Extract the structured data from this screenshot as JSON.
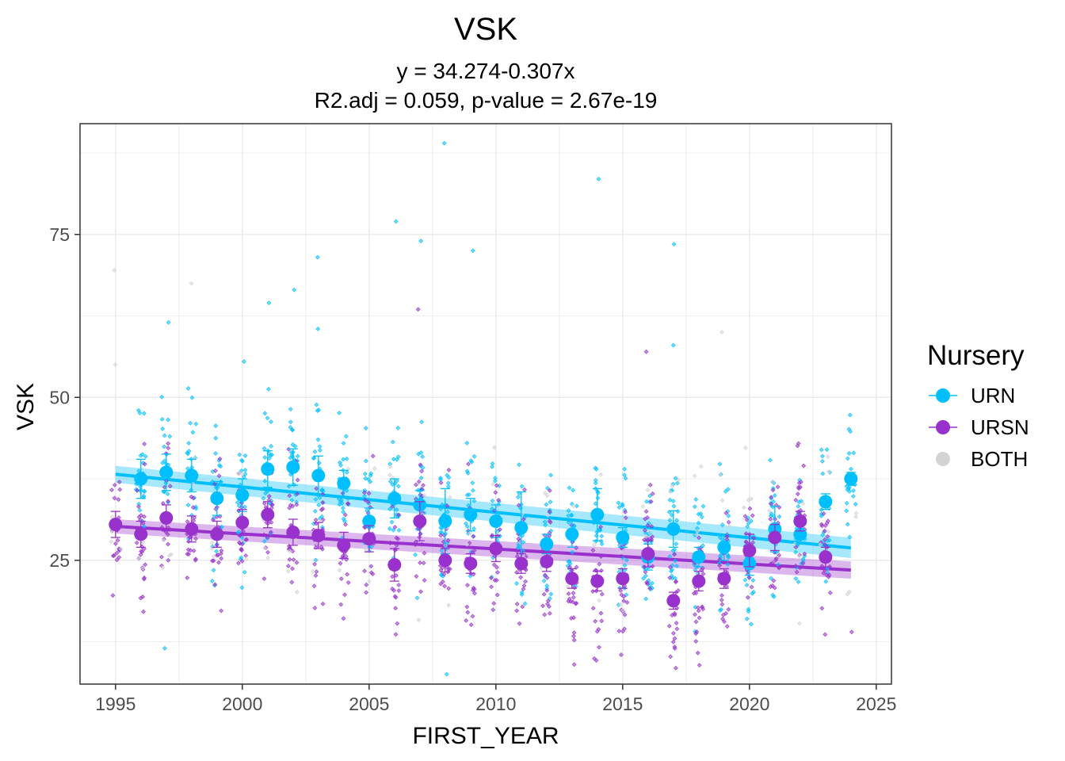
{
  "chart_data": {
    "type": "scatter",
    "title": "VSK",
    "subtitle_line1": "y = 34.274-0.307x",
    "subtitle_line2": "R2.adj = 0.059, p-value = 2.67e-19",
    "xlabel": "FIRST_YEAR",
    "ylabel": "VSK",
    "xlim": [
      1993.6,
      2025.6
    ],
    "ylim": [
      6.0,
      92.0
    ],
    "x_ticks": [
      1995,
      2000,
      2005,
      2010,
      2015,
      2020,
      2025
    ],
    "x_tick_labels": [
      "1995",
      "2000",
      "2005",
      "2010",
      "2015",
      "2020",
      "2025"
    ],
    "y_ticks": [
      25,
      50,
      75
    ],
    "y_tick_labels": [
      "25",
      "50",
      "75"
    ],
    "grid": true,
    "legend": {
      "title": "Nursery",
      "placement": "right",
      "items": [
        {
          "label": "URN",
          "color": "#00BFFF"
        },
        {
          "label": "URSN",
          "color": "#9932CC"
        },
        {
          "label": "BOTH",
          "color": "#D3D3D3"
        }
      ]
    },
    "series": [
      {
        "name": "URN",
        "color": "#00BFFF",
        "means": [
          {
            "x": 1996,
            "y": 37.5,
            "err": 3.0
          },
          {
            "x": 1997,
            "y": 38.5,
            "err": 2.8
          },
          {
            "x": 1998,
            "y": 38.0,
            "err": 2.5
          },
          {
            "x": 1999,
            "y": 34.5,
            "err": 2.6
          },
          {
            "x": 2000,
            "y": 35.0,
            "err": 2.5
          },
          {
            "x": 2001,
            "y": 39.0,
            "err": 2.8
          },
          {
            "x": 2002,
            "y": 39.3,
            "err": 2.8
          },
          {
            "x": 2003,
            "y": 38.0,
            "err": 3.0
          },
          {
            "x": 2004,
            "y": 36.8,
            "err": 2.0
          },
          {
            "x": 2005,
            "y": 31.0,
            "err": 2.0
          },
          {
            "x": 2006,
            "y": 34.5,
            "err": 3.0
          },
          {
            "x": 2007,
            "y": 33.5,
            "err": 2.2
          },
          {
            "x": 2008,
            "y": 31.0,
            "err": 5.0
          },
          {
            "x": 2009,
            "y": 32.0,
            "err": 2.5
          },
          {
            "x": 2010,
            "y": 31.0,
            "err": 2.5
          },
          {
            "x": 2011,
            "y": 30.0,
            "err": 5.5
          },
          {
            "x": 2012,
            "y": 27.5,
            "err": 1.5
          },
          {
            "x": 2013,
            "y": 29.0,
            "err": 2.0
          },
          {
            "x": 2014,
            "y": 32.0,
            "err": 4.0
          },
          {
            "x": 2015,
            "y": 28.5,
            "err": 1.5
          },
          {
            "x": 2016,
            "y": 25.5,
            "err": 2.0
          },
          {
            "x": 2017,
            "y": 29.8,
            "err": 2.8
          },
          {
            "x": 2018,
            "y": 25.5,
            "err": 1.5
          },
          {
            "x": 2019,
            "y": 27.0,
            "err": 2.0
          },
          {
            "x": 2020,
            "y": 24.5,
            "err": 1.8
          },
          {
            "x": 2021,
            "y": 29.8,
            "err": 3.5
          },
          {
            "x": 2022,
            "y": 29.0,
            "err": 1.5
          },
          {
            "x": 2023,
            "y": 34.0,
            "err": 1.2
          },
          {
            "x": 2024,
            "y": 37.5,
            "err": 1.0
          }
        ],
        "fit": {
          "x": [
            1995,
            2024
          ],
          "y": [
            38.2,
            26.9
          ],
          "ci_halfwidth": 1.3
        }
      },
      {
        "name": "URSN",
        "color": "#9932CC",
        "means": [
          {
            "x": 1995,
            "y": 30.5,
            "err": 2.0
          },
          {
            "x": 1996,
            "y": 29.0,
            "err": 2.0
          },
          {
            "x": 1997,
            "y": 31.5,
            "err": 2.0
          },
          {
            "x": 1998,
            "y": 29.8,
            "err": 2.0
          },
          {
            "x": 1999,
            "y": 29.0,
            "err": 2.0
          },
          {
            "x": 2000,
            "y": 30.8,
            "err": 2.0
          },
          {
            "x": 2001,
            "y": 32.0,
            "err": 2.0
          },
          {
            "x": 2002,
            "y": 29.3,
            "err": 2.0
          },
          {
            "x": 2003,
            "y": 28.8,
            "err": 2.0
          },
          {
            "x": 2004,
            "y": 27.3,
            "err": 2.0
          },
          {
            "x": 2005,
            "y": 28.3,
            "err": 2.0
          },
          {
            "x": 2006,
            "y": 24.3,
            "err": 2.5
          },
          {
            "x": 2007,
            "y": 31.0,
            "err": 3.0
          },
          {
            "x": 2008,
            "y": 25.0,
            "err": 1.8
          },
          {
            "x": 2009,
            "y": 24.5,
            "err": 1.5
          },
          {
            "x": 2010,
            "y": 26.8,
            "err": 2.0
          },
          {
            "x": 2011,
            "y": 24.5,
            "err": 1.5
          },
          {
            "x": 2012,
            "y": 24.8,
            "err": 1.5
          },
          {
            "x": 2013,
            "y": 22.2,
            "err": 1.5
          },
          {
            "x": 2014,
            "y": 21.8,
            "err": 1.5
          },
          {
            "x": 2015,
            "y": 22.2,
            "err": 1.5
          },
          {
            "x": 2016,
            "y": 26.0,
            "err": 2.0
          },
          {
            "x": 2017,
            "y": 18.8,
            "err": 1.3
          },
          {
            "x": 2018,
            "y": 21.8,
            "err": 1.5
          },
          {
            "x": 2019,
            "y": 22.2,
            "err": 1.5
          },
          {
            "x": 2020,
            "y": 26.5,
            "err": 2.5
          },
          {
            "x": 2021,
            "y": 28.5,
            "err": 2.0
          },
          {
            "x": 2022,
            "y": 31.0,
            "err": 1.5
          },
          {
            "x": 2023,
            "y": 25.5,
            "err": 1.5
          }
        ],
        "fit": {
          "x": [
            1995,
            2024
          ],
          "y": [
            30.2,
            23.5
          ],
          "ci_halfwidth": 1.1
        }
      },
      {
        "name": "BOTH",
        "color": "#D3D3D3",
        "means": []
      }
    ],
    "outlier_points": [
      {
        "x": 2008,
        "y": 89,
        "series": "URN"
      },
      {
        "x": 2014,
        "y": 83.5,
        "series": "URN"
      },
      {
        "x": 2006,
        "y": 77,
        "series": "URN"
      },
      {
        "x": 2007,
        "y": 74,
        "series": "URN"
      },
      {
        "x": 2017,
        "y": 73.5,
        "series": "URN"
      },
      {
        "x": 2009,
        "y": 72.5,
        "series": "URN"
      },
      {
        "x": 2003,
        "y": 71.5,
        "series": "URN"
      },
      {
        "x": 1995,
        "y": 69.5,
        "series": "BOTH"
      },
      {
        "x": 1998,
        "y": 67.5,
        "series": "BOTH"
      },
      {
        "x": 2002,
        "y": 66.5,
        "series": "URN"
      },
      {
        "x": 2001,
        "y": 64.5,
        "series": "URN"
      },
      {
        "x": 2007,
        "y": 63.5,
        "series": "URSN"
      },
      {
        "x": 1997,
        "y": 61.5,
        "series": "URN"
      },
      {
        "x": 2003,
        "y": 60.5,
        "series": "URN"
      },
      {
        "x": 2019,
        "y": 60,
        "series": "BOTH"
      },
      {
        "x": 2017,
        "y": 58,
        "series": "URN"
      },
      {
        "x": 2016,
        "y": 57,
        "series": "URSN"
      },
      {
        "x": 2000,
        "y": 55.5,
        "series": "URN"
      },
      {
        "x": 1995,
        "y": 55,
        "series": "BOTH"
      },
      {
        "x": 2008,
        "y": 7.5,
        "series": "URN"
      },
      {
        "x": 1997,
        "y": 11.5,
        "series": "URN"
      },
      {
        "x": 2013,
        "y": 9,
        "series": "URSN"
      },
      {
        "x": 2017,
        "y": 13,
        "series": "URSN"
      },
      {
        "x": 2024,
        "y": 14,
        "series": "URSN"
      }
    ]
  }
}
